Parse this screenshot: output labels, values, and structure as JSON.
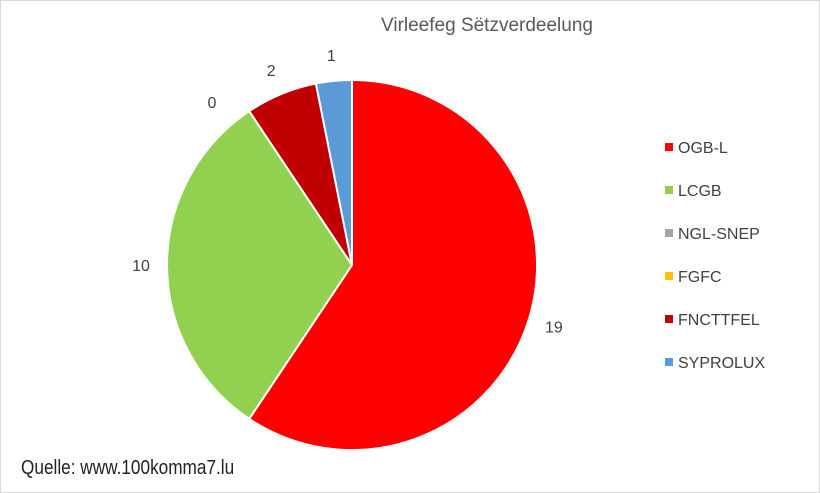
{
  "chart_data": {
    "type": "pie",
    "title": "Virleefeg Sëtzverdeelung",
    "categories": [
      "OGB-L",
      "LCGB",
      "NGL-SNEP",
      "FGFC",
      "FNCTTFEL",
      "SYPROLUX"
    ],
    "values": [
      19,
      10,
      0,
      0,
      2,
      1
    ],
    "data_labels": [
      "19",
      "10",
      "",
      "0",
      "2",
      "1"
    ],
    "colors": [
      "#ff0000",
      "#92d050",
      "#a5a5a5",
      "#ffc000",
      "#c00000",
      "#5b9bd5"
    ],
    "legend_position": "right"
  },
  "source": "Quelle: www.100komma7.lu"
}
